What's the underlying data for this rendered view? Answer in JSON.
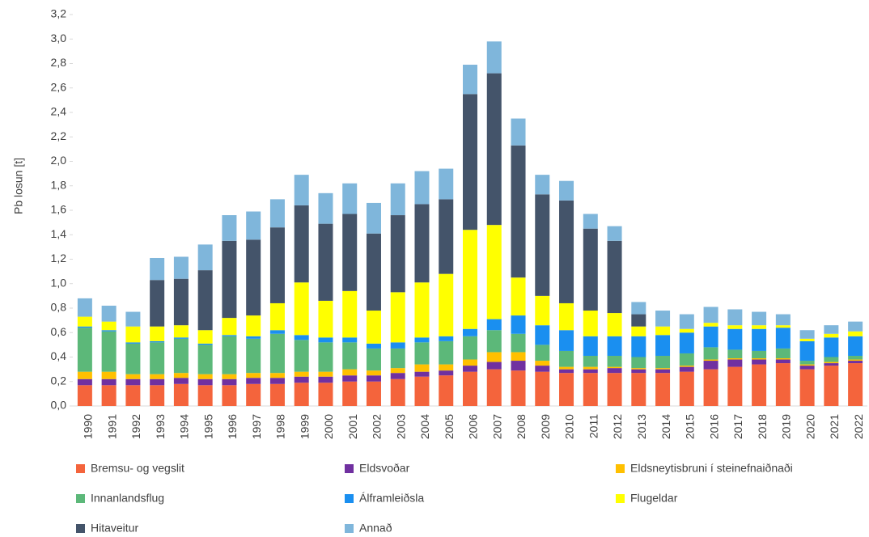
{
  "chart_data": {
    "type": "stacked_bar",
    "y_label": "Pb losun [t]",
    "categories": [
      "1990",
      "1991",
      "1992",
      "1993",
      "1994",
      "1995",
      "1996",
      "1997",
      "1998",
      "1999",
      "2000",
      "2001",
      "2002",
      "2003",
      "2004",
      "2005",
      "2006",
      "2007",
      "2008",
      "2009",
      "2010",
      "2011",
      "2012",
      "2013",
      "2014",
      "2015",
      "2016",
      "2017",
      "2018",
      "2019",
      "2020",
      "2021",
      "2022"
    ],
    "series": [
      {
        "name": "Bremsu- og vegslit",
        "color": "#f4643c",
        "values": [
          0.17,
          0.17,
          0.17,
          0.17,
          0.18,
          0.17,
          0.17,
          0.18,
          0.18,
          0.19,
          0.19,
          0.2,
          0.2,
          0.22,
          0.24,
          0.25,
          0.28,
          0.3,
          0.29,
          0.28,
          0.27,
          0.27,
          0.27,
          0.27,
          0.27,
          0.28,
          0.3,
          0.32,
          0.34,
          0.35,
          0.3,
          0.33,
          0.35
        ]
      },
      {
        "name": "Eldsvoðar",
        "color": "#7030a0",
        "values": [
          0.05,
          0.05,
          0.05,
          0.05,
          0.05,
          0.05,
          0.05,
          0.05,
          0.05,
          0.05,
          0.05,
          0.05,
          0.05,
          0.05,
          0.04,
          0.04,
          0.05,
          0.06,
          0.08,
          0.05,
          0.03,
          0.03,
          0.04,
          0.03,
          0.03,
          0.04,
          0.07,
          0.06,
          0.04,
          0.03,
          0.03,
          0.02,
          0.02
        ]
      },
      {
        "name": "Eldsneytisbruni í steinefnaiðnaði",
        "color": "#ffc000",
        "values": [
          0.06,
          0.06,
          0.04,
          0.04,
          0.04,
          0.04,
          0.04,
          0.04,
          0.04,
          0.04,
          0.04,
          0.05,
          0.04,
          0.04,
          0.06,
          0.05,
          0.05,
          0.08,
          0.07,
          0.04,
          0.02,
          0.02,
          0.01,
          0.01,
          0.01,
          0.01,
          0.01,
          0.01,
          0.01,
          0.01,
          0.01,
          0.01,
          0.01
        ]
      },
      {
        "name": "Innanlandsflug",
        "color": "#5cb879",
        "values": [
          0.36,
          0.33,
          0.25,
          0.26,
          0.28,
          0.24,
          0.31,
          0.28,
          0.32,
          0.26,
          0.24,
          0.22,
          0.18,
          0.16,
          0.18,
          0.19,
          0.19,
          0.18,
          0.15,
          0.13,
          0.13,
          0.09,
          0.09,
          0.09,
          0.1,
          0.1,
          0.1,
          0.07,
          0.06,
          0.08,
          0.03,
          0.04,
          0.03
        ]
      },
      {
        "name": "Álframleiðsla",
        "color": "#1a8ff0",
        "values": [
          0.01,
          0.01,
          0.01,
          0.01,
          0.01,
          0.01,
          0.01,
          0.02,
          0.03,
          0.04,
          0.04,
          0.04,
          0.04,
          0.05,
          0.04,
          0.04,
          0.06,
          0.09,
          0.15,
          0.16,
          0.17,
          0.16,
          0.16,
          0.17,
          0.17,
          0.17,
          0.17,
          0.17,
          0.18,
          0.17,
          0.16,
          0.16,
          0.16
        ]
      },
      {
        "name": "Flugeldar",
        "color": "#ffff00",
        "values": [
          0.08,
          0.07,
          0.13,
          0.12,
          0.1,
          0.11,
          0.14,
          0.17,
          0.22,
          0.43,
          0.3,
          0.38,
          0.27,
          0.41,
          0.45,
          0.51,
          0.81,
          0.77,
          0.31,
          0.24,
          0.22,
          0.21,
          0.19,
          0.08,
          0.07,
          0.03,
          0.03,
          0.03,
          0.03,
          0.02,
          0.02,
          0.03,
          0.04
        ]
      },
      {
        "name": "Hitaveitur",
        "color": "#44546a",
        "values": [
          0,
          0,
          0,
          0.38,
          0.38,
          0.49,
          0.63,
          0.62,
          0.62,
          0.63,
          0.63,
          0.63,
          0.63,
          0.63,
          0.64,
          0.61,
          1.11,
          1.24,
          1.08,
          0.83,
          0.84,
          0.67,
          0.59,
          0.1,
          0,
          0,
          0,
          0,
          0,
          0,
          0,
          0,
          0
        ]
      },
      {
        "name": "Annað",
        "color": "#7fb6db",
        "values": [
          0.15,
          0.13,
          0.12,
          0.18,
          0.18,
          0.21,
          0.21,
          0.23,
          0.23,
          0.25,
          0.25,
          0.25,
          0.25,
          0.26,
          0.27,
          0.25,
          0.24,
          0.26,
          0.22,
          0.16,
          0.16,
          0.12,
          0.12,
          0.1,
          0.13,
          0.12,
          0.13,
          0.13,
          0.11,
          0.09,
          0.07,
          0.07,
          0.08
        ]
      }
    ],
    "ylim": [
      0,
      3.2
    ],
    "yticks": [
      {
        "value": 0,
        "label": "0,0"
      },
      {
        "value": 0.2,
        "label": "0,2"
      },
      {
        "value": 0.4,
        "label": "0,4"
      },
      {
        "value": 0.6,
        "label": "0,6"
      },
      {
        "value": 0.8,
        "label": "0,8"
      },
      {
        "value": 1,
        "label": "1,0"
      },
      {
        "value": 1.2,
        "label": "1,2"
      },
      {
        "value": 1.4,
        "label": "1,4"
      },
      {
        "value": 1.6,
        "label": "1,6"
      },
      {
        "value": 1.8,
        "label": "1,8"
      },
      {
        "value": 2,
        "label": "2,0"
      },
      {
        "value": 2.2,
        "label": "2,2"
      },
      {
        "value": 2.4,
        "label": "2,4"
      },
      {
        "value": 2.6,
        "label": "2,6"
      },
      {
        "value": 2.8,
        "label": "2,8"
      },
      {
        "value": 3,
        "label": "3,0"
      },
      {
        "value": 3.2,
        "label": "3,2"
      }
    ],
    "legend": "bottom"
  }
}
